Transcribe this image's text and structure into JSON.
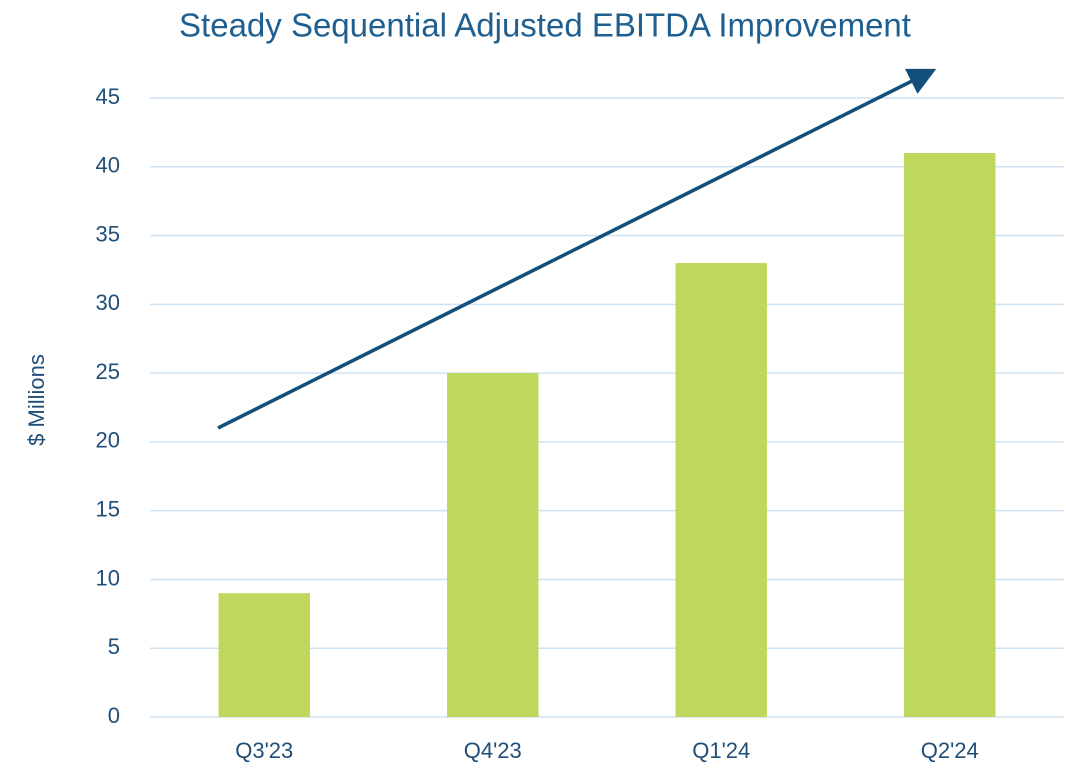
{
  "chart_data": {
    "type": "bar",
    "title": "Steady Sequential Adjusted EBITDA Improvement",
    "y_label": "$ Millions",
    "categories": [
      "Q3'23",
      "Q4'23",
      "Q1'24",
      "Q2'24"
    ],
    "values": [
      9,
      25,
      33,
      41
    ],
    "color": "#bdd85c",
    "ylim": [
      0,
      45
    ],
    "yticks": [
      0,
      5,
      10,
      15,
      20,
      25,
      30,
      35,
      40,
      45
    ],
    "grid": true
  }
}
